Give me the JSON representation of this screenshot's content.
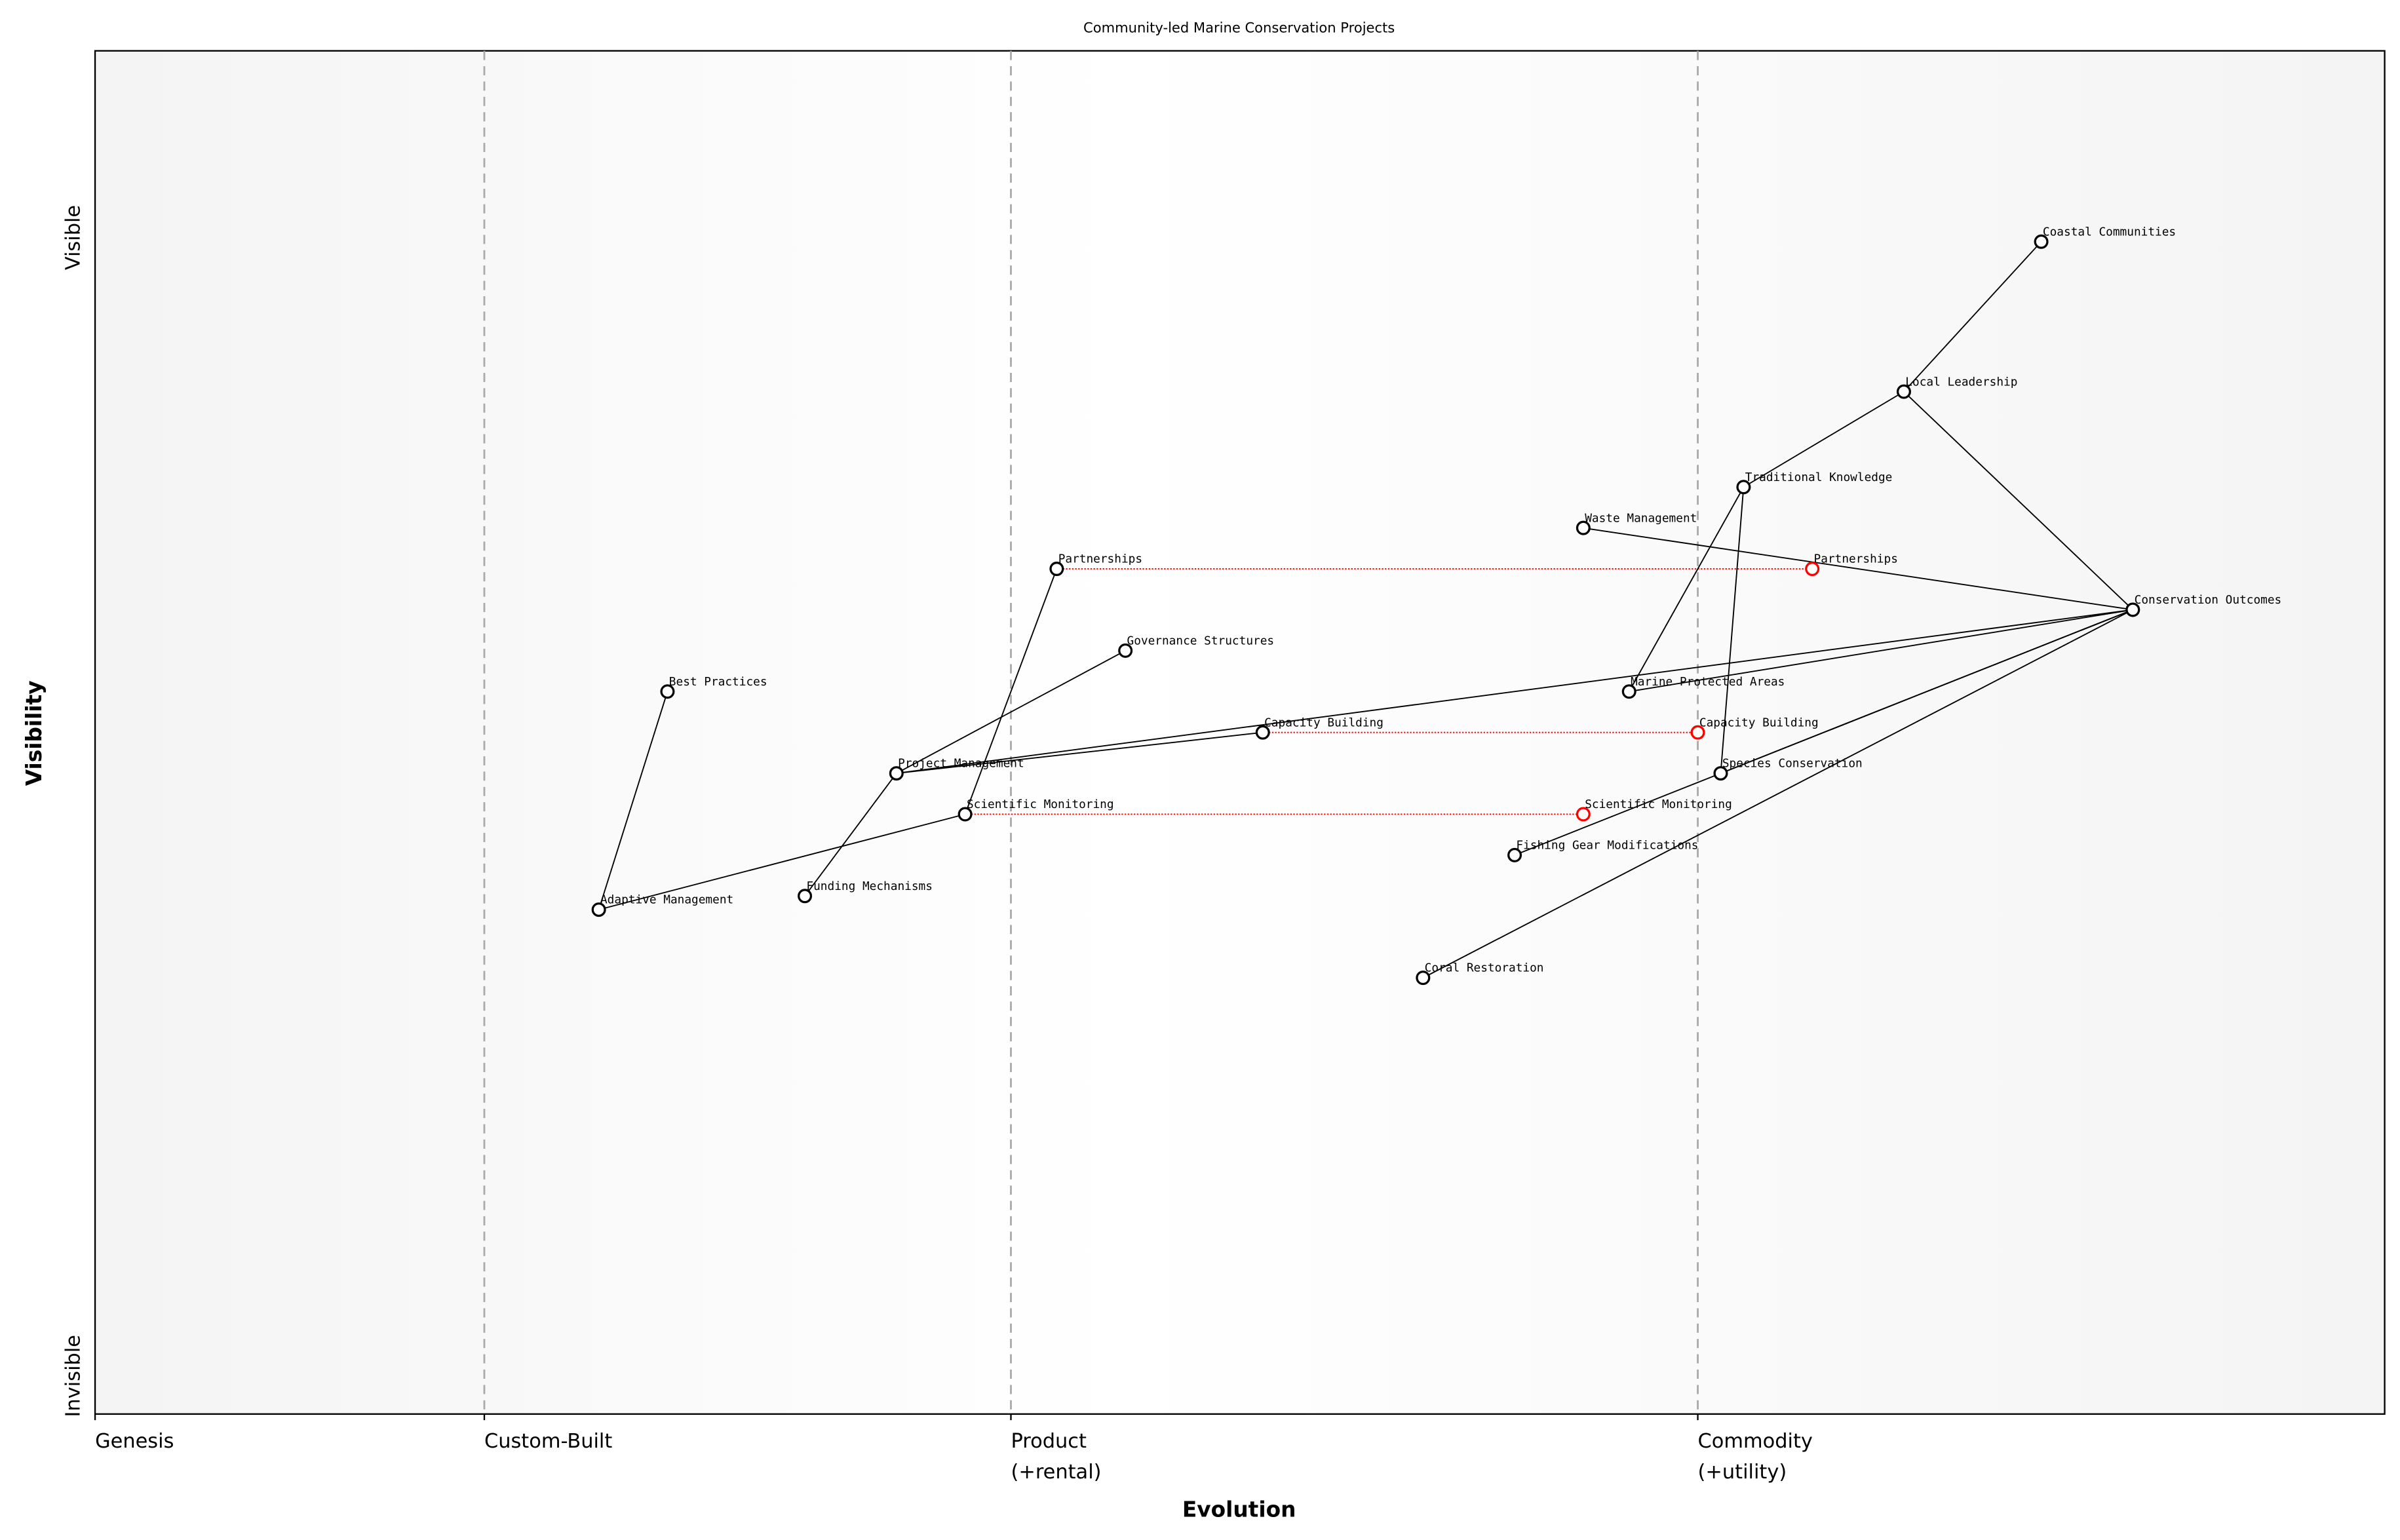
{
  "title": "Community-led Marine Conservation Projects",
  "x_axis": {
    "label": "Evolution",
    "stages": [
      {
        "label": "Genesis",
        "sub": "",
        "at": 0.0
      },
      {
        "label": "Custom-Built",
        "sub": "",
        "at": 0.17
      },
      {
        "label": "Product",
        "sub": "(+rental)",
        "at": 0.4
      },
      {
        "label": "Commodity",
        "sub": "(+utility)",
        "at": 0.7
      }
    ]
  },
  "y_axis": {
    "label": "Visibility",
    "top_label": "Visible",
    "bottom_label": "Invisible"
  },
  "colors": {
    "node": "#000000",
    "evolved_node": "#ff0000",
    "evolve_line": "#ff0000",
    "divider": "#aaaaaa",
    "edge_band": "#f5f5f5"
  },
  "components": [
    {
      "name": "Coastal Communities",
      "evolution": 0.85,
      "visibility": 0.86
    },
    {
      "name": "Local Leadership",
      "evolution": 0.79,
      "visibility": 0.75
    },
    {
      "name": "Traditional Knowledge",
      "evolution": 0.72,
      "visibility": 0.68
    },
    {
      "name": "Waste Management",
      "evolution": 0.65,
      "visibility": 0.65
    },
    {
      "name": "Partnerships",
      "evolution": 0.42,
      "visibility": 0.62
    },
    {
      "name": "Conservation Outcomes",
      "evolution": 0.89,
      "visibility": 0.59
    },
    {
      "name": "Governance Structures",
      "evolution": 0.45,
      "visibility": 0.56
    },
    {
      "name": "Best Practices",
      "evolution": 0.25,
      "visibility": 0.53
    },
    {
      "name": "Marine Protected Areas",
      "evolution": 0.67,
      "visibility": 0.53
    },
    {
      "name": "Capacity Building",
      "evolution": 0.51,
      "visibility": 0.5
    },
    {
      "name": "Project Management",
      "evolution": 0.35,
      "visibility": 0.47
    },
    {
      "name": "Species Conservation",
      "evolution": 0.71,
      "visibility": 0.47
    },
    {
      "name": "Scientific Monitoring",
      "evolution": 0.38,
      "visibility": 0.44
    },
    {
      "name": "Fishing Gear Modifications",
      "evolution": 0.62,
      "visibility": 0.41
    },
    {
      "name": "Funding Mechanisms",
      "evolution": 0.31,
      "visibility": 0.38
    },
    {
      "name": "Adaptive Management",
      "evolution": 0.22,
      "visibility": 0.37
    },
    {
      "name": "Coral Restoration",
      "evolution": 0.58,
      "visibility": 0.32
    }
  ],
  "evolutions": [
    {
      "name": "Partnerships",
      "to": 0.75
    },
    {
      "name": "Capacity Building",
      "to": 0.7
    },
    {
      "name": "Scientific Monitoring",
      "to": 0.65
    }
  ],
  "links": [
    [
      "Coastal Communities",
      "Local Leadership"
    ],
    [
      "Local Leadership",
      "Traditional Knowledge"
    ],
    [
      "Local Leadership",
      "Conservation Outcomes"
    ],
    [
      "Traditional Knowledge",
      "Marine Protected Areas"
    ],
    [
      "Traditional Knowledge",
      "Species Conservation"
    ],
    [
      "Waste Management",
      "Conservation Outcomes"
    ],
    [
      "Conservation Outcomes",
      "Project Management"
    ],
    [
      "Conservation Outcomes",
      "Marine Protected Areas"
    ],
    [
      "Conservation Outcomes",
      "Species Conservation"
    ],
    [
      "Conservation Outcomes",
      "Fishing Gear Modifications"
    ],
    [
      "Conservation Outcomes",
      "Coral Restoration"
    ],
    [
      "Project Management",
      "Capacity Building"
    ],
    [
      "Project Management",
      "Governance Structures"
    ],
    [
      "Project Management",
      "Funding Mechanisms"
    ],
    [
      "Partnerships",
      "Scientific Monitoring"
    ],
    [
      "Scientific Monitoring",
      "Adaptive Management"
    ],
    [
      "Adaptive Management",
      "Best Practices"
    ]
  ]
}
